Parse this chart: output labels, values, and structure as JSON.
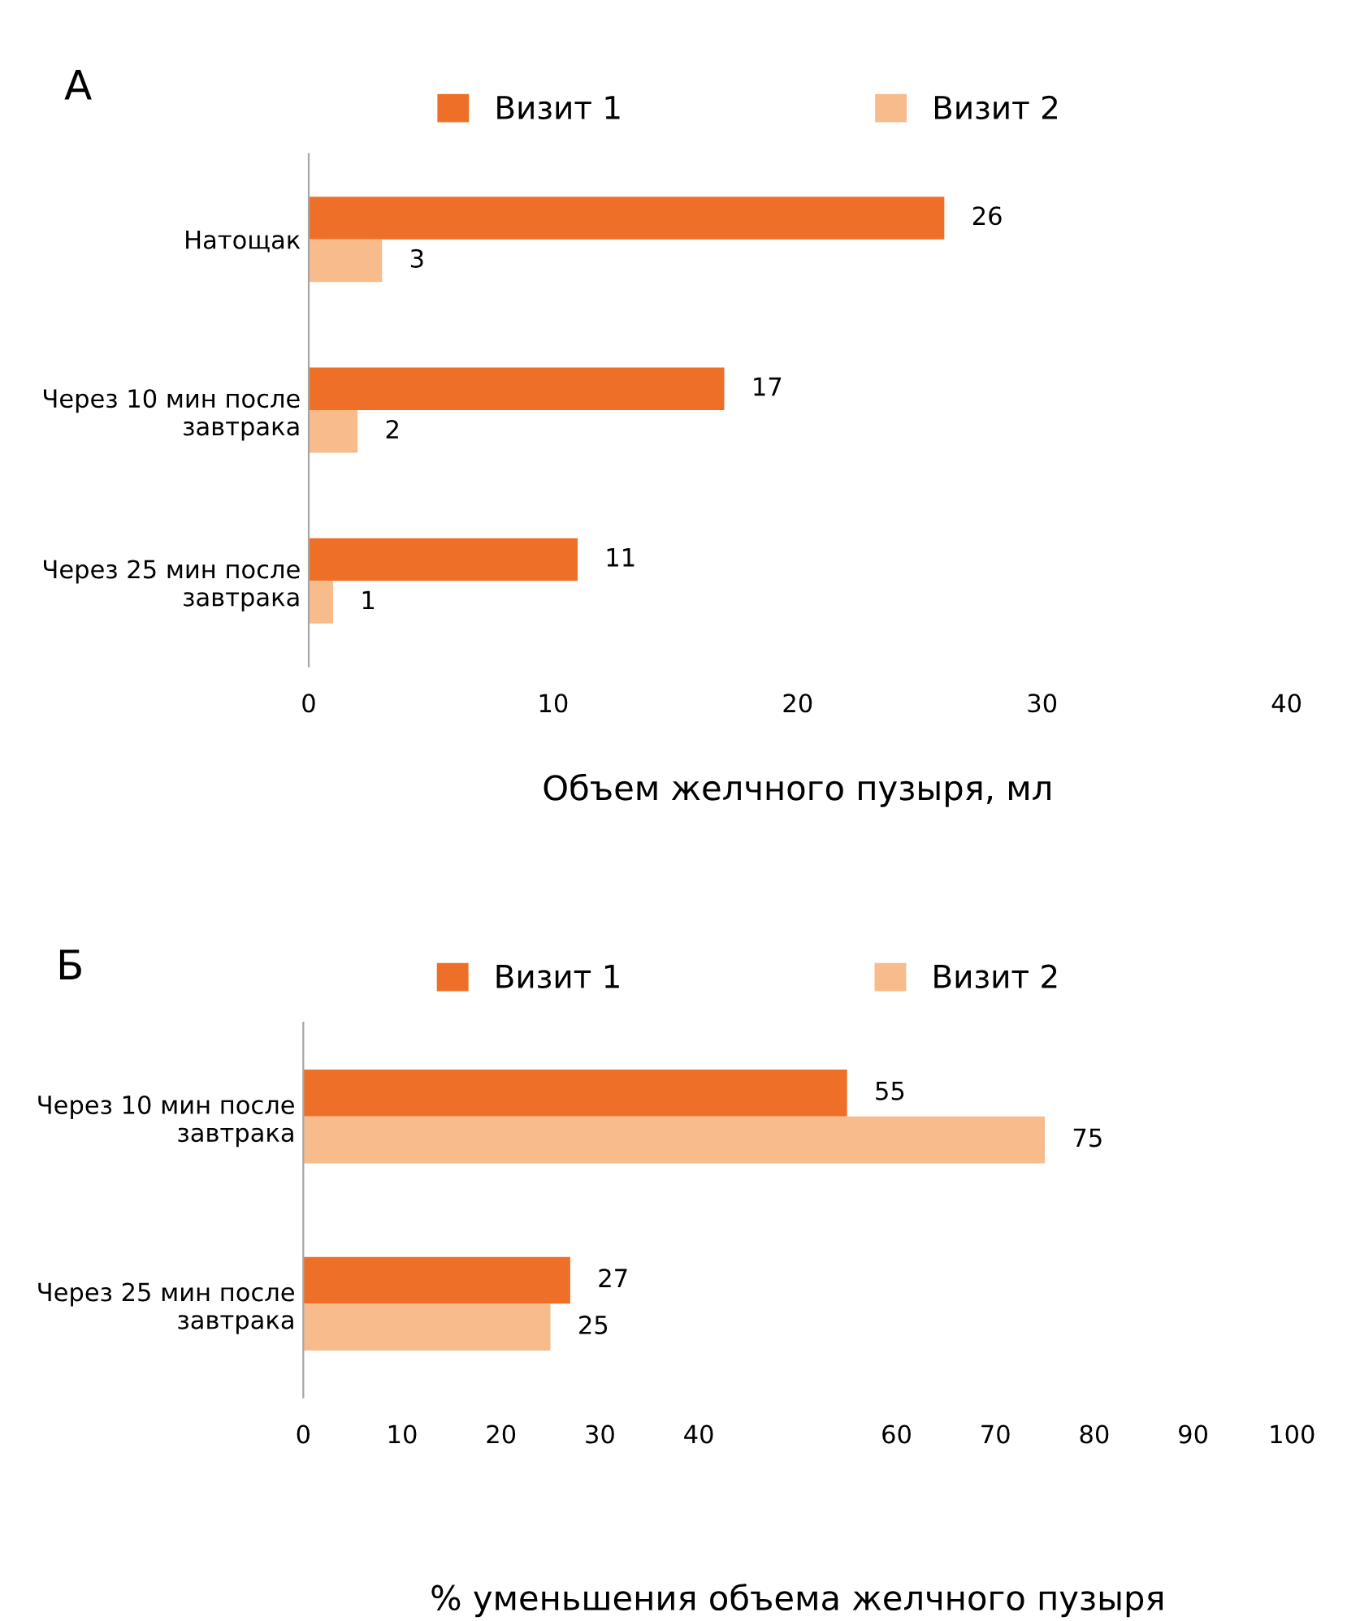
{
  "chart_data": [
    {
      "type": "bar",
      "orientation": "horizontal",
      "title": "А",
      "xlabel": "Объем желчного пузыря, мл",
      "categories": [
        "Натощак",
        "Через 10 мин после завтрака",
        "Через 25 мин после завтрака"
      ],
      "series": [
        {
          "name": "Визит 1",
          "color": "#ee7028",
          "values": [
            26,
            17,
            11
          ]
        },
        {
          "name": "Визит 2",
          "color": "#f8bb8c",
          "values": [
            3,
            2,
            1
          ]
        }
      ],
      "xlim": [
        0,
        40
      ],
      "xticks": [
        0,
        10,
        20,
        30,
        40
      ],
      "grid": false,
      "legend": "top",
      "data_labels": true
    },
    {
      "type": "bar",
      "orientation": "horizontal",
      "title": "Б",
      "xlabel": "% уменьшения объема желчного пузыря",
      "categories": [
        "Через 10 мин после завтрака",
        "Через 25 мин после завтрака"
      ],
      "series": [
        {
          "name": "Визит 1",
          "color": "#ee7028",
          "values": [
            55,
            27
          ]
        },
        {
          "name": "Визит 2",
          "color": "#f8bb8c",
          "values": [
            75,
            25
          ]
        }
      ],
      "xlim": [
        0,
        100
      ],
      "xticks": [
        0,
        10,
        20,
        30,
        40,
        60,
        70,
        80,
        90,
        100
      ],
      "grid": false,
      "legend": "top",
      "data_labels": true
    }
  ]
}
